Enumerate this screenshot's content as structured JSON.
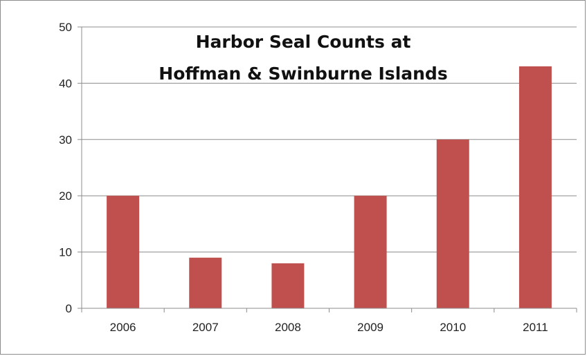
{
  "chart_data": {
    "type": "bar",
    "title_lines": [
      "Harbor Seal Counts  at",
      "Hoffman & Swinburne Islands"
    ],
    "categories": [
      "2006",
      "2007",
      "2008",
      "2009",
      "2010",
      "2011"
    ],
    "series": [
      {
        "values": [
          20,
          9,
          8,
          20,
          30,
          43
        ]
      }
    ],
    "xlabel": "",
    "ylabel": "",
    "ylim": [
      0,
      50
    ],
    "yticks": [
      0,
      10,
      20,
      30,
      40,
      50
    ],
    "grid": true,
    "legend": "none",
    "colors": {
      "bar": "#c0504d",
      "grid": "#8c8c8c",
      "axis": "#8c8c8c"
    }
  }
}
